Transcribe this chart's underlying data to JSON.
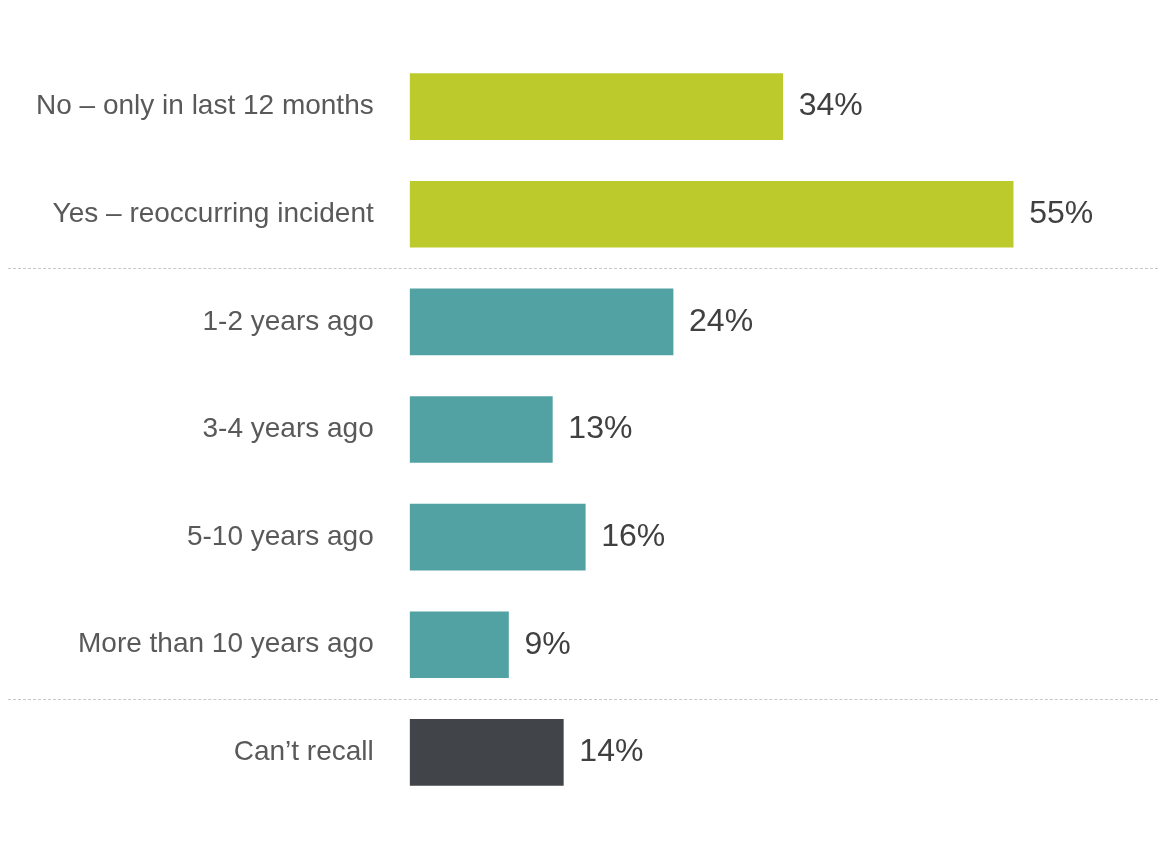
{
  "chart_data": {
    "type": "bar",
    "orientation": "horizontal",
    "categories": [
      "No – only in last 12 months",
      "Yes – reoccurring incident",
      "1-2 years ago",
      "3-4 years ago",
      "5-10 years ago",
      "More than 10 years ago",
      "Can’t recall"
    ],
    "values": [
      34,
      55,
      24,
      13,
      16,
      9,
      14
    ],
    "colors": [
      "#bccb2b",
      "#bccb2b",
      "#52a2a4",
      "#52a2a4",
      "#52a2a4",
      "#52a2a4",
      "#414449"
    ],
    "value_labels": [
      "34%",
      "55%",
      "24%",
      "13%",
      "16%",
      "9%",
      "14%"
    ]
  }
}
